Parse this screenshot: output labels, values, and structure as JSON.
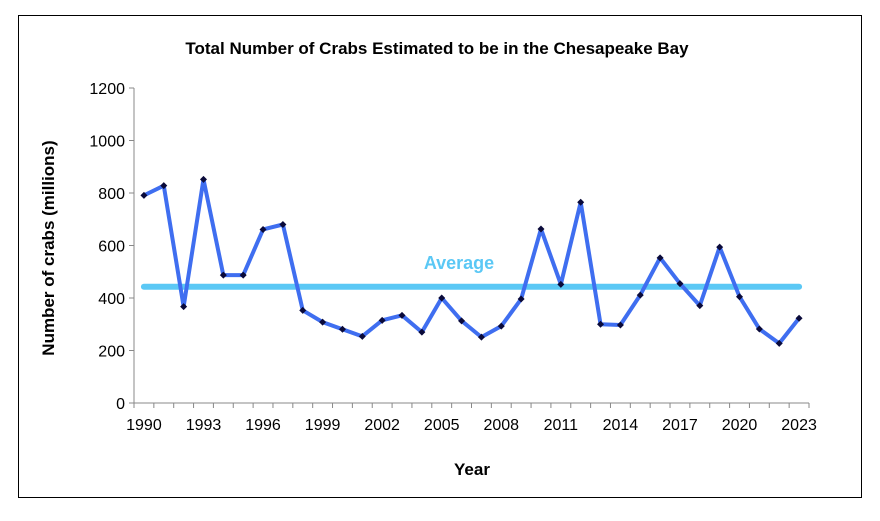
{
  "chart_data": {
    "type": "line",
    "title": "Total Number of Crabs Estimated to be in the Chesapeake Bay",
    "xlabel": "Year",
    "ylabel": "Number of crabs (millions)",
    "ylim": [
      0,
      1200
    ],
    "yticks": [
      0,
      200,
      400,
      600,
      800,
      1000,
      1200
    ],
    "xtick_labels": [
      "1990",
      "1993",
      "1996",
      "1999",
      "2002",
      "2005",
      "2008",
      "2011",
      "2014",
      "2017",
      "2020",
      "2023"
    ],
    "grid": false,
    "x": [
      1990,
      1991,
      1992,
      1993,
      1994,
      1995,
      1996,
      1997,
      1998,
      1999,
      2000,
      2001,
      2002,
      2003,
      2004,
      2005,
      2006,
      2007,
      2008,
      2009,
      2010,
      2011,
      2012,
      2013,
      2014,
      2015,
      2016,
      2017,
      2018,
      2019,
      2020,
      2021,
      2022,
      2023
    ],
    "series": [
      {
        "values": [
          791,
          828,
          367,
          852,
          487,
          487,
          661,
          680,
          353,
          308,
          281,
          254,
          315,
          334,
          270,
          400,
          313,
          251,
          293,
          396,
          663,
          452,
          765,
          300,
          297,
          411,
          553,
          455,
          371,
          594,
          405,
          282,
          227,
          323
        ],
        "color": "#3f6ef0"
      }
    ],
    "average": {
      "label": "Average",
      "value": 443,
      "color": "#5bc8f5"
    }
  }
}
